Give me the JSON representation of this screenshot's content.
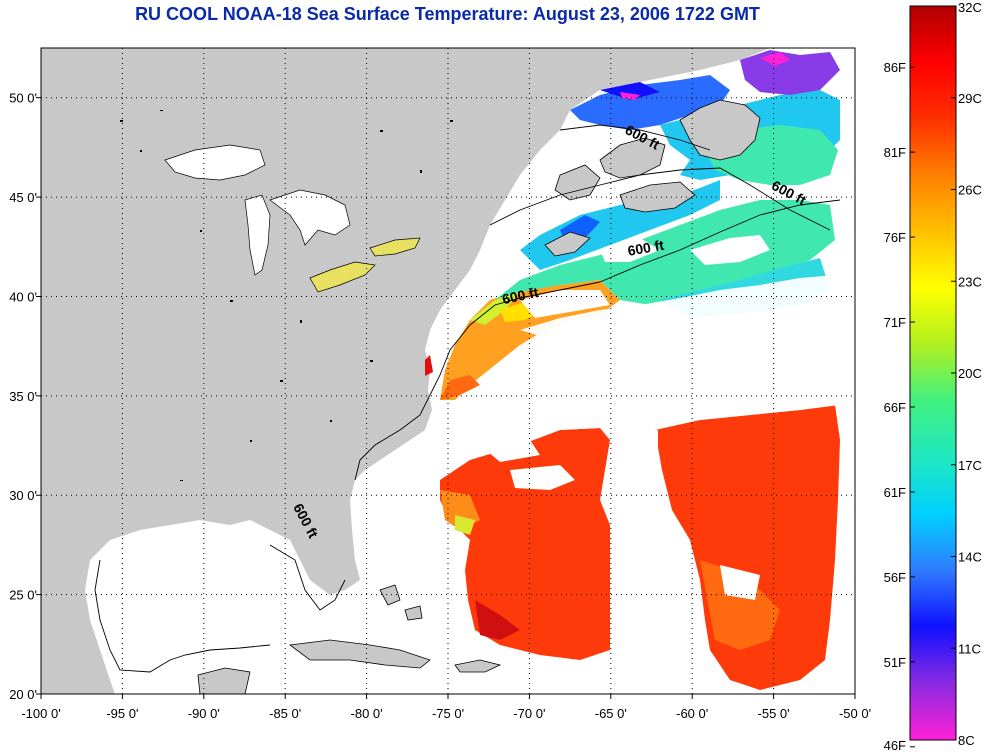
{
  "title": "RU COOL  NOAA-18  Sea Surface Temperature:  August 23, 2006 1722 GMT",
  "map": {
    "lon_range": [
      -100,
      -50
    ],
    "lat_range": [
      20,
      52.5
    ],
    "lon_ticks": [
      {
        "value": -100,
        "label": "-100 0'"
      },
      {
        "value": -95,
        "label": "-95 0'"
      },
      {
        "value": -90,
        "label": "-90 0'"
      },
      {
        "value": -85,
        "label": "-85 0'"
      },
      {
        "value": -80,
        "label": "-80 0'"
      },
      {
        "value": -75,
        "label": "-75 0'"
      },
      {
        "value": -70,
        "label": "-70 0'"
      },
      {
        "value": -65,
        "label": "-65 0'"
      },
      {
        "value": -60,
        "label": "-60 0'"
      },
      {
        "value": -55,
        "label": "-55 0'"
      },
      {
        "value": -50,
        "label": "-50 0'"
      }
    ],
    "lat_ticks": [
      {
        "value": 20,
        "label": "20 0'"
      },
      {
        "value": 25,
        "label": "25 0'"
      },
      {
        "value": 30,
        "label": "30 0'"
      },
      {
        "value": 35,
        "label": "35 0'"
      },
      {
        "value": 40,
        "label": "40 0'"
      },
      {
        "value": 45,
        "label": "45 0'"
      },
      {
        "value": 50,
        "label": "50 0'"
      }
    ],
    "grid": true,
    "land_color": "#c8c8c8",
    "cloud_color": "#ffffff",
    "contour_labels": [
      {
        "text": "600 ft",
        "lon": -63.2,
        "lat": 47.8,
        "angle": 28
      },
      {
        "text": "600 ft",
        "lon": -54.2,
        "lat": 45.0,
        "angle": 28
      },
      {
        "text": "600 ft",
        "lon": -62.8,
        "lat": 42.2,
        "angle": -10
      },
      {
        "text": "600 ft",
        "lon": -70.5,
        "lat": 39.8,
        "angle": -12
      },
      {
        "text": "600 ft",
        "lon": -84.0,
        "lat": 28.6,
        "angle": 62
      }
    ]
  },
  "colorbar": {
    "min_c": 8,
    "max_c": 32,
    "colors": [
      "#ff20d8",
      "#8a2be2",
      "#1010ff",
      "#2f7bff",
      "#00d0ff",
      "#20e8c0",
      "#40f080",
      "#b0f020",
      "#ffff00",
      "#ffc000",
      "#ff8000",
      "#ff3000",
      "#ff0000",
      "#b00000"
    ],
    "celsius_ticks": [
      {
        "value": 32,
        "label": "32C"
      },
      {
        "value": 29,
        "label": "29C"
      },
      {
        "value": 26,
        "label": "26C"
      },
      {
        "value": 23,
        "label": "23C"
      },
      {
        "value": 20,
        "label": "20C"
      },
      {
        "value": 17,
        "label": "17C"
      },
      {
        "value": 14,
        "label": "14C"
      },
      {
        "value": 11,
        "label": "11C"
      },
      {
        "value": 8,
        "label": "8C"
      }
    ],
    "fahrenheit_ticks": [
      {
        "value": 86,
        "label": "86F"
      },
      {
        "value": 81,
        "label": "81F"
      },
      {
        "value": 76,
        "label": "76F"
      },
      {
        "value": 71,
        "label": "71F"
      },
      {
        "value": 66,
        "label": "66F"
      },
      {
        "value": 61,
        "label": "61F"
      },
      {
        "value": 56,
        "label": "56F"
      },
      {
        "value": 51,
        "label": "51F"
      },
      {
        "value": 46,
        "label": "46F"
      }
    ]
  }
}
